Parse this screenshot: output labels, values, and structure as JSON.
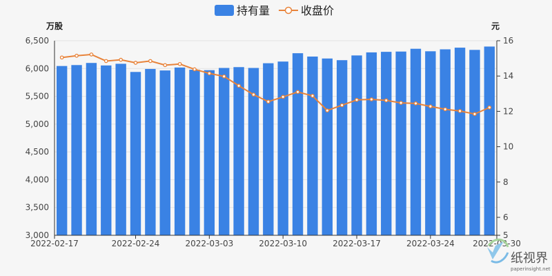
{
  "chart_data": {
    "type": "bar",
    "title": "",
    "legend": {
      "position": "top-center",
      "items": [
        {
          "name": "持有量",
          "kind": "bar",
          "color": "#3a82e4"
        },
        {
          "name": "收盘价",
          "kind": "line",
          "color": "#e8833a"
        }
      ]
    },
    "left_axis": {
      "unit": "万股",
      "ylim": [
        3000,
        6500
      ],
      "ticks": [
        "3,000",
        "3,500",
        "4,000",
        "4,500",
        "5,000",
        "5,500",
        "6,000",
        "6,500"
      ],
      "tick_values": [
        3000,
        3500,
        4000,
        4500,
        5000,
        5500,
        6000,
        6500
      ]
    },
    "right_axis": {
      "unit": "元",
      "ylim": [
        5,
        16
      ],
      "ticks": [
        "5",
        "6",
        "8",
        "10",
        "12",
        "14",
        "16"
      ],
      "tick_values": [
        5,
        6,
        8,
        10,
        12,
        14,
        16
      ]
    },
    "x_tick_labels": [
      "2022-02-17",
      "2022-02-24",
      "2022-03-03",
      "2022-03-10",
      "2022-03-17",
      "2022-03-24",
      "2022-03-30"
    ],
    "categories": [
      "2022-02-17",
      "2022-02-18",
      "2022-02-21",
      "2022-02-22",
      "2022-02-23",
      "2022-02-24",
      "2022-02-25",
      "2022-02-28",
      "2022-03-01",
      "2022-03-02",
      "2022-03-03",
      "2022-03-04",
      "2022-03-07",
      "2022-03-08",
      "2022-03-09",
      "2022-03-10",
      "2022-03-11",
      "2022-03-14",
      "2022-03-15",
      "2022-03-16",
      "2022-03-17",
      "2022-03-18",
      "2022-03-21",
      "2022-03-22",
      "2022-03-23",
      "2022-03-24",
      "2022-03-25",
      "2022-03-28",
      "2022-03-29",
      "2022-03-30"
    ],
    "series": [
      {
        "name": "持有量",
        "type": "bar",
        "axis": "left",
        "color": "#3a82e4",
        "values": [
          6045,
          6062,
          6100,
          6055,
          6085,
          5938,
          5992,
          5965,
          6018,
          5978,
          5970,
          6010,
          6025,
          6010,
          6095,
          6125,
          6275,
          6215,
          6180,
          6150,
          6235,
          6290,
          6300,
          6305,
          6355,
          6310,
          6345,
          6375,
          6335,
          6395
        ]
      },
      {
        "name": "收盘价",
        "type": "line",
        "axis": "right",
        "color": "#e8833a",
        "values": [
          15.05,
          15.15,
          15.22,
          14.85,
          14.92,
          14.75,
          14.85,
          14.62,
          14.68,
          14.38,
          14.15,
          13.98,
          13.45,
          12.95,
          12.55,
          12.82,
          13.1,
          12.88,
          12.05,
          12.35,
          12.65,
          12.68,
          12.62,
          12.48,
          12.45,
          12.28,
          12.12,
          12.02,
          11.85,
          12.22
        ]
      }
    ]
  },
  "watermark": {
    "title": "纸视界",
    "subtitle": "paperinsight.net"
  }
}
